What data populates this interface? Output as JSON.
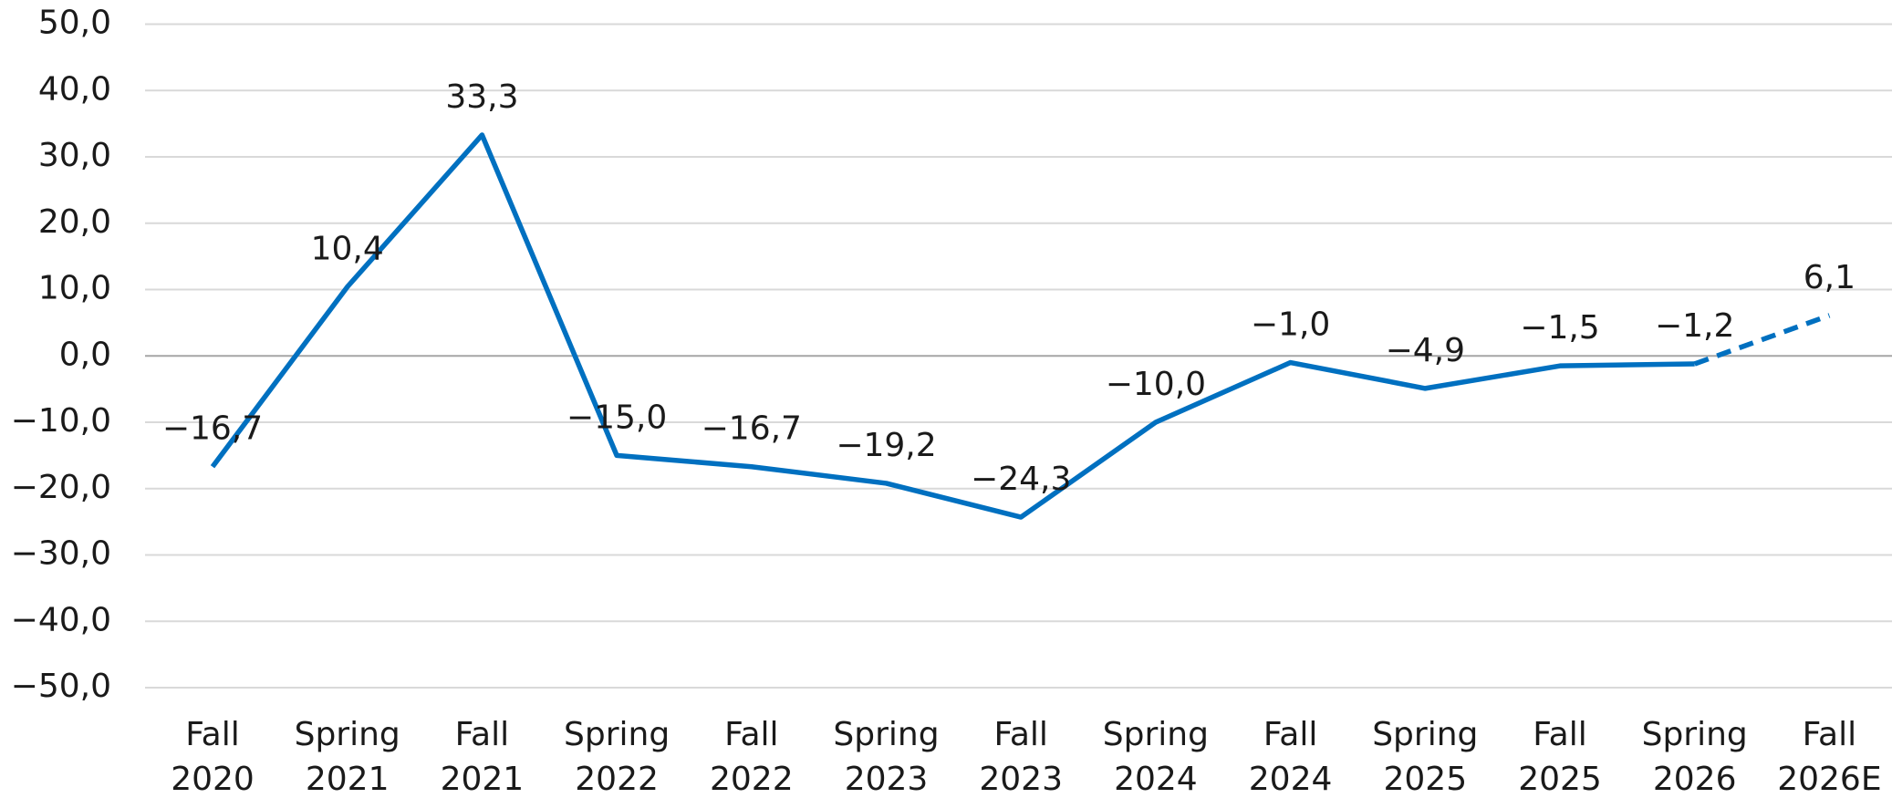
{
  "chart_data": {
    "type": "line",
    "categories": [
      "Fall 2020",
      "Spring 2021",
      "Fall 2021",
      "Spring 2022",
      "Fall 2022",
      "Spring 2023",
      "Fall 2023",
      "Spring 2024",
      "Fall 2024",
      "Spring 2025",
      "Fall 2025",
      "Spring 2026",
      "Fall 2026E"
    ],
    "series": [
      {
        "color": "#0070c0",
        "values": [
          -16.7,
          10.4,
          33.3,
          -15.0,
          -16.7,
          -19.2,
          -24.3,
          -10.0,
          -1.0,
          -4.9,
          -1.5,
          -1.2,
          6.1
        ],
        "value_labels": [
          "−16,7",
          "10,4",
          "33,3",
          "−15,0",
          "−16,7",
          "−19,2",
          "−24,3",
          "−10,0",
          "−1,0",
          "−4,9",
          "−1,5",
          "−1,2",
          "6,1"
        ],
        "dashed_from_index": 11
      }
    ],
    "ylim": [
      -50,
      50
    ],
    "yticks": [
      {
        "value": -50,
        "label": "−50,0"
      },
      {
        "value": -40,
        "label": "−40,0"
      },
      {
        "value": -30,
        "label": "−30,0"
      },
      {
        "value": -20,
        "label": "−20,0"
      },
      {
        "value": -10,
        "label": "−10,0"
      },
      {
        "value": 0,
        "label": "0,0"
      },
      {
        "value": 10,
        "label": "10,0"
      },
      {
        "value": 20,
        "label": "20,0"
      },
      {
        "value": 30,
        "label": "30,0"
      },
      {
        "value": 40,
        "label": "40,0"
      },
      {
        "value": 50,
        "label": "50,0"
      }
    ],
    "grid": true
  }
}
